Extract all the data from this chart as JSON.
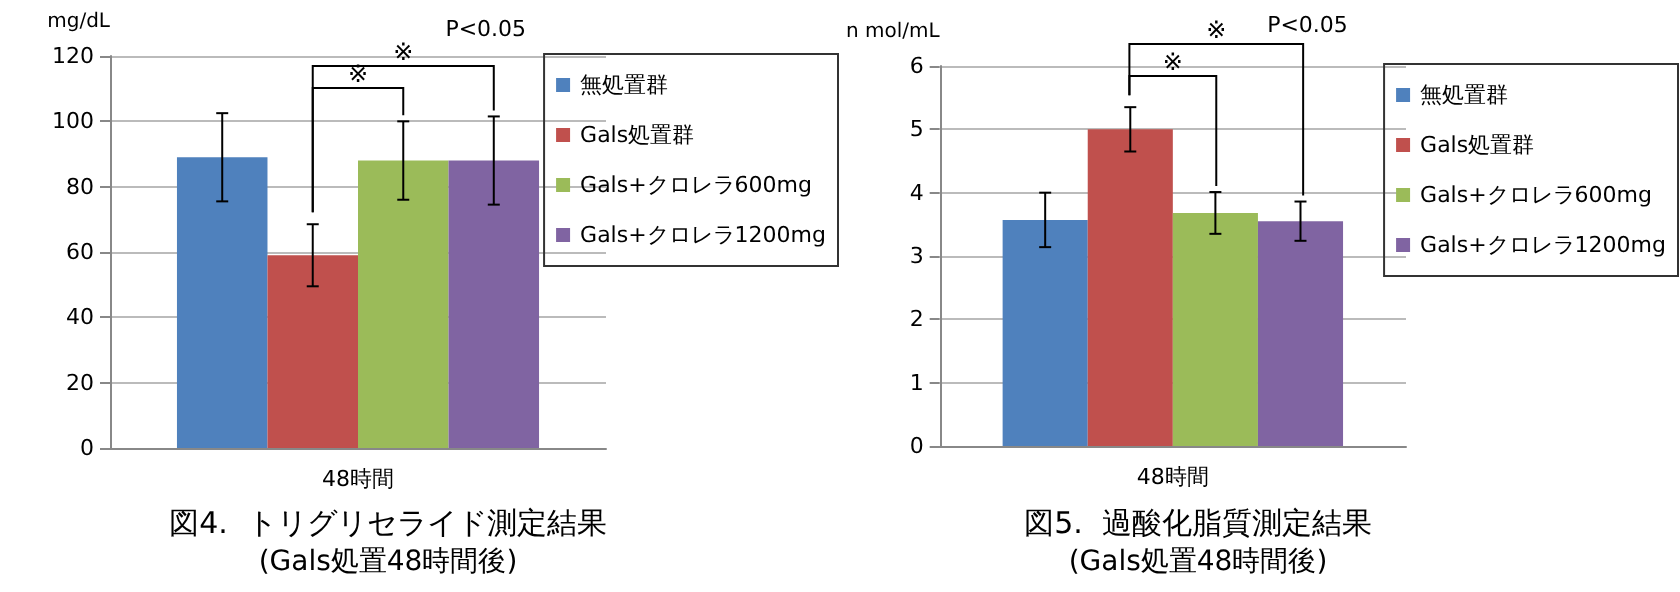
{
  "chart_data": [
    {
      "type": "bar",
      "title": "図4.  トリグリセライド測定結果",
      "subtitle": "(Gals処置48時間後)",
      "ylabel": "mg/dL",
      "categories": [
        "48時間"
      ],
      "series": [
        {
          "name": "無処置群",
          "color": "#4f81bd",
          "values": [
            89
          ],
          "errors": [
            13.5
          ]
        },
        {
          "name": "Gals処置群",
          "color": "#c0504d",
          "values": [
            59
          ],
          "errors": [
            9.5
          ]
        },
        {
          "name": "Gals+クロレラ600mg",
          "color": "#9bbb59",
          "values": [
            88
          ],
          "errors": [
            12
          ]
        },
        {
          "name": "Gals+クロレラ1200mg",
          "color": "#8064a2",
          "values": [
            88
          ],
          "errors": [
            13.5
          ]
        }
      ],
      "ylim": [
        0,
        120
      ],
      "yticks": [
        0,
        20,
        40,
        60,
        80,
        100,
        120
      ],
      "grid": "y",
      "legend": "top right",
      "annotations": [
        "※",
        "※",
        "P<0.05"
      ]
    },
    {
      "type": "bar",
      "title": "図5.  過酸化脂質測定結果",
      "subtitle": "(Gals処置48時間後)",
      "ylabel": "n mol/mL",
      "categories": [
        "48時間"
      ],
      "series": [
        {
          "name": "無処置群",
          "color": "#4f81bd",
          "values": [
            3.57
          ],
          "errors": [
            0.43
          ]
        },
        {
          "name": "Gals処置群",
          "color": "#c0504d",
          "values": [
            5.0
          ],
          "errors": [
            0.35
          ]
        },
        {
          "name": "Gals+クロレラ600mg",
          "color": "#9bbb59",
          "values": [
            3.68
          ],
          "errors": [
            0.33
          ]
        },
        {
          "name": "Gals+クロレラ1200mg",
          "color": "#8064a2",
          "values": [
            3.55
          ],
          "errors": [
            0.31
          ]
        }
      ],
      "ylim": [
        0,
        6
      ],
      "yticks": [
        0,
        1,
        2,
        3,
        4,
        5,
        6
      ],
      "grid": "y",
      "legend": "top right",
      "annotations": [
        "※",
        "※",
        "P<0.05"
      ]
    }
  ]
}
